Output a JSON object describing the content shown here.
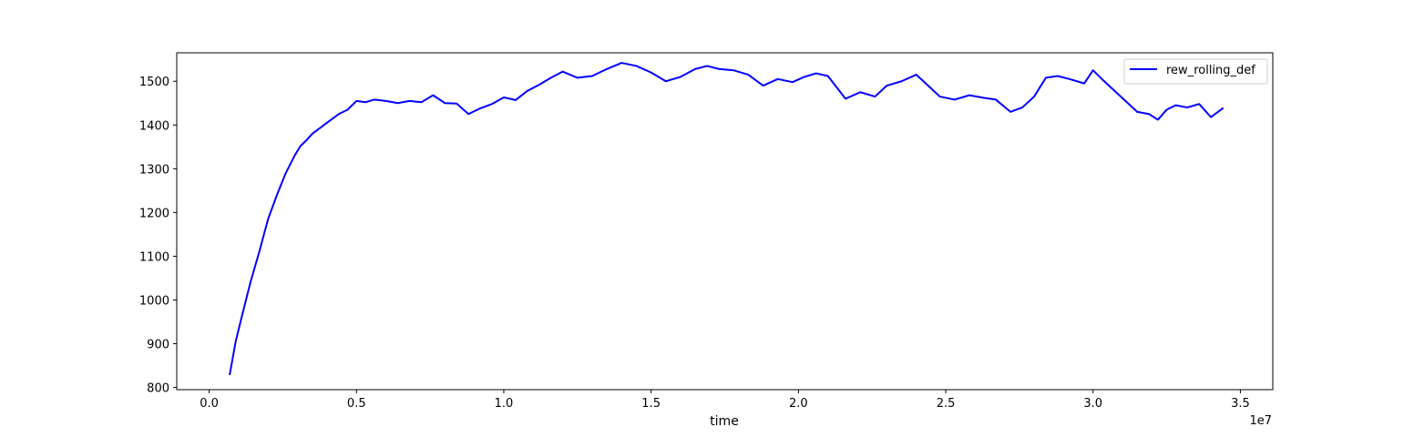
{
  "chart_data": {
    "type": "line",
    "title": "",
    "xlabel": "time",
    "ylabel": "",
    "x_offset_label": "1e7",
    "xlim": [
      -1100000,
      36100000
    ],
    "ylim": [
      795,
      1565
    ],
    "xticks": [
      0,
      5000000,
      10000000,
      15000000,
      20000000,
      25000000,
      30000000,
      35000000
    ],
    "xtick_labels": [
      "0.0",
      "0.5",
      "1.0",
      "1.5",
      "2.0",
      "2.5",
      "3.0",
      "3.5"
    ],
    "yticks": [
      800,
      900,
      1000,
      1100,
      1200,
      1300,
      1400,
      1500
    ],
    "ytick_labels": [
      "800",
      "900",
      "1000",
      "1100",
      "1200",
      "1300",
      "1400",
      "1500"
    ],
    "grid": false,
    "legend_position": "top-right",
    "series": [
      {
        "name": "rew_rolling_def",
        "color": "#0000ff",
        "x": [
          700000,
          900000,
          1100000,
          1400000,
          1700000,
          2000000,
          2300000,
          2600000,
          2900000,
          3100000,
          3300000,
          3500000,
          3800000,
          4100000,
          4400000,
          4700000,
          5000000,
          5300000,
          5600000,
          6000000,
          6400000,
          6800000,
          7200000,
          7600000,
          8000000,
          8400000,
          8800000,
          9200000,
          9600000,
          10000000,
          10400000,
          10800000,
          11200000,
          11600000,
          12000000,
          12500000,
          13000000,
          13500000,
          14000000,
          14500000,
          15000000,
          15500000,
          16000000,
          16500000,
          16900000,
          17300000,
          17800000,
          18300000,
          18800000,
          19300000,
          19800000,
          20200000,
          20600000,
          21000000,
          21600000,
          22100000,
          22600000,
          23000000,
          23500000,
          24000000,
          24400000,
          24800000,
          25300000,
          25800000,
          26300000,
          26700000,
          27200000,
          27600000,
          28000000,
          28400000,
          28800000,
          29200000,
          29700000,
          30000000,
          30300000,
          30700000,
          31100000,
          31500000,
          31900000,
          32200000,
          32500000,
          32800000,
          33200000,
          33600000,
          34000000,
          34400000
        ],
        "values": [
          830,
          905,
          960,
          1040,
          1110,
          1185,
          1240,
          1290,
          1330,
          1352,
          1365,
          1380,
          1395,
          1410,
          1425,
          1435,
          1455,
          1452,
          1458,
          1455,
          1450,
          1455,
          1452,
          1468,
          1450,
          1449,
          1425,
          1438,
          1448,
          1463,
          1457,
          1478,
          1492,
          1508,
          1522,
          1508,
          1512,
          1528,
          1542,
          1535,
          1520,
          1500,
          1510,
          1528,
          1535,
          1528,
          1525,
          1515,
          1490,
          1505,
          1498,
          1510,
          1518,
          1512,
          1460,
          1475,
          1465,
          1490,
          1500,
          1515,
          1490,
          1465,
          1458,
          1468,
          1462,
          1458,
          1430,
          1440,
          1465,
          1508,
          1512,
          1505,
          1495,
          1525,
          1505,
          1480,
          1455,
          1430,
          1425,
          1412,
          1435,
          1445,
          1440,
          1448,
          1418,
          1438
        ]
      }
    ]
  }
}
